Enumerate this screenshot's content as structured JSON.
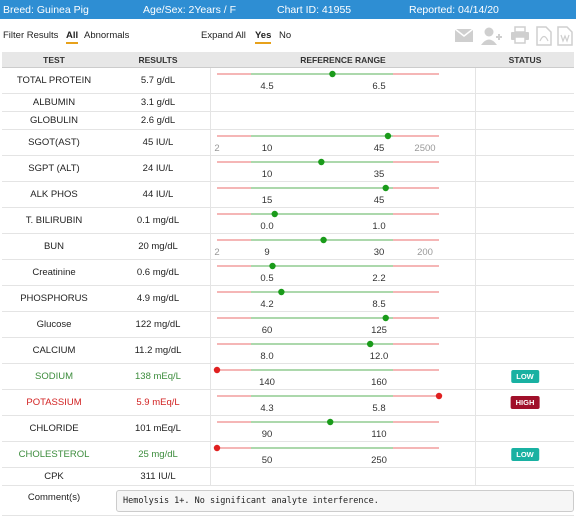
{
  "header": {
    "breed": "Breed: Guinea Pig",
    "age_sex": "Age/Sex: 2Years / F",
    "chart_id": "Chart ID: 41955",
    "reported": "Reported: 04/14/20"
  },
  "filters": {
    "filter_label": "Filter Results",
    "all": "All",
    "abnormals": "Abnormals",
    "expand_label": "Expand All",
    "yes": "Yes",
    "no": "No"
  },
  "toolbar_icons": [
    "envelope-icon",
    "add-user-icon",
    "printer-icon",
    "pdf-icon",
    "word-icon"
  ],
  "columns": {
    "test": "TEST",
    "results": "RESULTS",
    "reference": "REFERENCE RANGE",
    "status": "STATUS"
  },
  "colors": {
    "normal": "#222222",
    "low": "#3c8c3c",
    "high": "#d22222",
    "low_badge": "#19b1a2",
    "high_badge": "#a0102a",
    "range_green": "#7bc17a",
    "range_red": "#ef8b8b",
    "marker_green": "#1a9b1a",
    "marker_red": "#e02020"
  },
  "rows": [
    {
      "test": "TOTAL PROTEIN",
      "result": "5.7 g/dL",
      "status": "",
      "flag": "normal",
      "ref": {
        "low": "4.5",
        "high": "6.5",
        "min": "",
        "max": "",
        "pos": 0.52
      }
    },
    {
      "test": "ALBUMIN",
      "result": "3.1 g/dL",
      "status": "",
      "flag": "normal",
      "ref": null
    },
    {
      "test": "GLOBULIN",
      "result": "2.6 g/dL",
      "status": "",
      "flag": "normal",
      "ref": null
    },
    {
      "test": "SGOT(AST)",
      "result": "45 IU/L",
      "status": "",
      "flag": "normal",
      "ref": {
        "low": "10",
        "high": "45",
        "min": "2",
        "max": "2500",
        "pos": 0.77
      }
    },
    {
      "test": "SGPT (ALT)",
      "result": "24 IU/L",
      "status": "",
      "flag": "normal",
      "ref": {
        "low": "10",
        "high": "35",
        "min": "",
        "max": "",
        "pos": 0.47
      }
    },
    {
      "test": "ALK PHOS",
      "result": "44 IU/L",
      "status": "",
      "flag": "normal",
      "ref": {
        "low": "15",
        "high": "45",
        "min": "",
        "max": "",
        "pos": 0.76
      }
    },
    {
      "test": "T. BILIRUBIN",
      "result": "0.1 mg/dL",
      "status": "",
      "flag": "normal",
      "ref": {
        "low": "0.0",
        "high": "1.0",
        "min": "",
        "max": "",
        "pos": 0.26
      }
    },
    {
      "test": "BUN",
      "result": "20 mg/dL",
      "status": "",
      "flag": "normal",
      "ref": {
        "low": "9",
        "high": "30",
        "min": "2",
        "max": "200",
        "pos": 0.48
      }
    },
    {
      "test": "Creatinine",
      "result": "0.6 mg/dL",
      "status": "",
      "flag": "normal",
      "ref": {
        "low": "0.5",
        "high": "2.2",
        "min": "",
        "max": "",
        "pos": 0.25
      }
    },
    {
      "test": "PHOSPHORUS",
      "result": "4.9 mg/dL",
      "status": "",
      "flag": "normal",
      "ref": {
        "low": "4.2",
        "high": "8.5",
        "min": "",
        "max": "",
        "pos": 0.29
      }
    },
    {
      "test": "Glucose",
      "result": "122 mg/dL",
      "status": "",
      "flag": "normal",
      "ref": {
        "low": "60",
        "high": "125",
        "min": "",
        "max": "",
        "pos": 0.76
      }
    },
    {
      "test": "CALCIUM",
      "result": "11.2 mg/dL",
      "status": "",
      "flag": "normal",
      "ref": {
        "low": "8.0",
        "high": "12.0",
        "min": "",
        "max": "",
        "pos": 0.69
      }
    },
    {
      "test": "SODIUM",
      "result": "138 mEq/L",
      "status": "LOW",
      "flag": "low",
      "ref": {
        "low": "140",
        "high": "160",
        "min": "",
        "max": "",
        "pos": 0.0
      }
    },
    {
      "test": "POTASSIUM",
      "result": "5.9 mEq/L",
      "status": "HIGH",
      "flag": "high",
      "ref": {
        "low": "4.3",
        "high": "5.8",
        "min": "",
        "max": "",
        "pos": 1.0
      }
    },
    {
      "test": "CHLORIDE",
      "result": "101 mEq/L",
      "status": "",
      "flag": "normal",
      "ref": {
        "low": "90",
        "high": "110",
        "min": "",
        "max": "",
        "pos": 0.51
      }
    },
    {
      "test": "CHOLESTEROL",
      "result": "25 mg/dL",
      "status": "LOW",
      "flag": "low",
      "ref": {
        "low": "50",
        "high": "250",
        "min": "",
        "max": "",
        "pos": 0.0
      }
    },
    {
      "test": "CPK",
      "result": "311 IU/L",
      "status": "",
      "flag": "normal",
      "ref": null
    }
  ],
  "comments": {
    "label": "Comment(s)",
    "text": "Hemolysis 1+. No significant analyte interference."
  }
}
